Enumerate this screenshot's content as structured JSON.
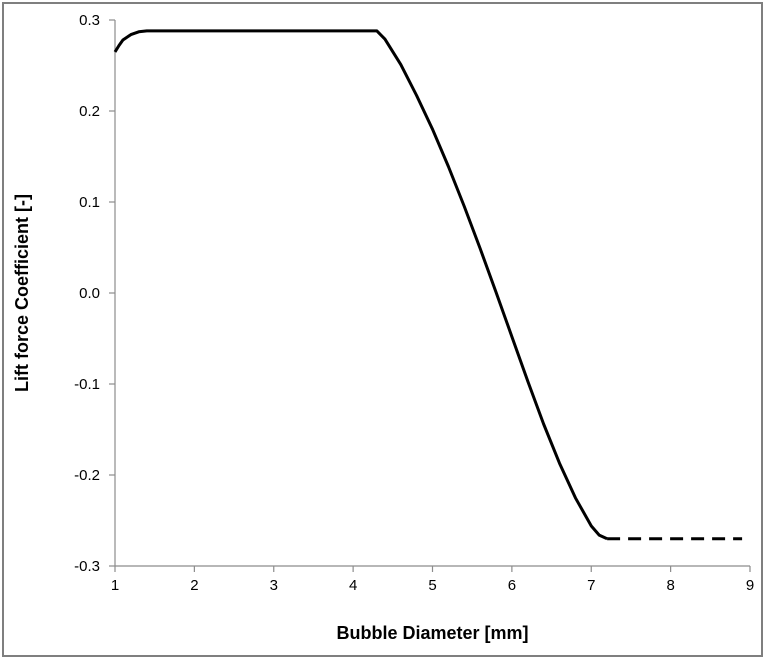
{
  "chart_data": {
    "type": "line",
    "title": "",
    "xlabel": "Bubble Diameter [mm]",
    "ylabel": "Lift force Coefficient [-]",
    "xlim": [
      1,
      9
    ],
    "ylim": [
      -0.3,
      0.3
    ],
    "x_ticks": [
      1,
      2,
      3,
      4,
      5,
      6,
      7,
      8,
      9
    ],
    "x_tick_labels": [
      "1",
      "2",
      "3",
      "4",
      "5",
      "6",
      "7",
      "8",
      "9"
    ],
    "y_ticks": [
      0.3,
      0.2,
      0.1,
      0.0,
      -0.1,
      -0.2,
      -0.3
    ],
    "y_tick_labels": [
      "0.3",
      "0.2",
      "0.1",
      "0.0",
      "-0.1",
      "-0.2",
      "-0.3"
    ],
    "grid": false,
    "legend": "none",
    "series": [
      {
        "line_style": "solid",
        "color": "#000000",
        "x": [
          1.0,
          1.05,
          1.1,
          1.2,
          1.3,
          1.4,
          1.6,
          2.0,
          3.0,
          4.0,
          4.3,
          4.4,
          4.6,
          4.8,
          5.0,
          5.2,
          5.4,
          5.6,
          5.8,
          6.0,
          6.2,
          6.4,
          6.6,
          6.8,
          7.0,
          7.1,
          7.2
        ],
        "y": [
          0.265,
          0.272,
          0.278,
          0.284,
          0.287,
          0.288,
          0.288,
          0.288,
          0.288,
          0.288,
          0.288,
          0.279,
          0.251,
          0.217,
          0.18,
          0.139,
          0.095,
          0.049,
          0.001,
          -0.048,
          -0.097,
          -0.144,
          -0.187,
          -0.225,
          -0.256,
          -0.266,
          -0.27
        ]
      },
      {
        "line_style": "dashed",
        "color": "#000000",
        "x": [
          7.2,
          8.0,
          8.9
        ],
        "y": [
          -0.27,
          -0.27,
          -0.27
        ]
      }
    ]
  }
}
